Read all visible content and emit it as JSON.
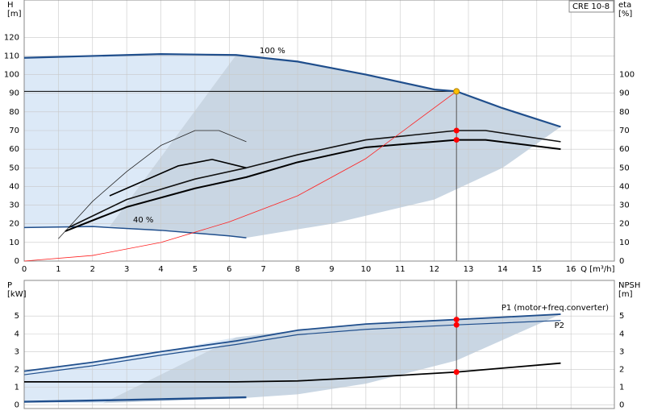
{
  "chart_data": [
    {
      "type": "line",
      "title": "CRE 10-8",
      "ylabel": "H",
      "yunit": "[m]",
      "y2label": "eta",
      "y2unit": "[%]",
      "xlabel": "Q [m³/h]",
      "xlim": [
        0,
        17.27
      ],
      "xticks": [
        0,
        1,
        2,
        3,
        4,
        5,
        6,
        7,
        8,
        9,
        10,
        11,
        12,
        13,
        14,
        15,
        16
      ],
      "ylim": [
        0,
        140
      ],
      "yticks": [
        0,
        10,
        20,
        30,
        40,
        50,
        60,
        70,
        80,
        90,
        100,
        110,
        120
      ],
      "y2lim": [
        0,
        140
      ],
      "y2ticks": [
        0,
        10,
        20,
        30,
        40,
        50,
        60,
        70,
        80,
        90,
        100
      ],
      "grid": true,
      "areas": [
        {
          "color": "#dce9f7",
          "x": [
            0,
            2,
            4,
            6.2,
            2.5,
            0
          ],
          "values": [
            109,
            110,
            111,
            110.5,
            18.5,
            18
          ]
        },
        {
          "color": "#c9d6e3",
          "x": [
            6.2,
            8,
            10,
            12,
            12.65,
            14,
            15.7,
            14,
            12,
            9,
            6.5,
            4,
            2.5
          ],
          "values": [
            110.5,
            107,
            100,
            92,
            91,
            82,
            72,
            50,
            33,
            20,
            12.5,
            16.5,
            18.5
          ]
        }
      ],
      "series": [
        {
          "name": "100 %",
          "color": "#1f4e8c",
          "width": 2.2,
          "x": [
            0,
            2,
            4,
            6.2,
            8,
            10,
            12,
            12.65,
            14,
            15.7
          ],
          "values": [
            109,
            110,
            111,
            110.5,
            107,
            100,
            92,
            91,
            82,
            72
          ]
        },
        {
          "name": "40 %",
          "color": "#1f4e8c",
          "width": 1.5,
          "x": [
            0,
            2,
            4,
            6,
            6.5
          ],
          "values": [
            18,
            18.5,
            16.5,
            13.5,
            12.5
          ]
        },
        {
          "color": "#111111",
          "width": 1.6,
          "axis": "y2",
          "x": [
            1.3,
            3,
            5,
            6.5,
            8,
            10,
            12.65,
            13.5,
            15.7
          ],
          "values": [
            18,
            33,
            44,
            50,
            57,
            65,
            70,
            70,
            64
          ]
        },
        {
          "color": "#000000",
          "width": 2,
          "axis": "y2",
          "x": [
            1.2,
            3,
            5,
            6.5,
            8,
            10,
            12.65,
            13.5,
            15.7
          ],
          "values": [
            16,
            29,
            39,
            45,
            53,
            61,
            65,
            65,
            60
          ]
        },
        {
          "color": "#222222",
          "width": 0.8,
          "axis": "y2",
          "x": [
            1,
            2,
            3,
            4,
            5,
            5.7,
            6.5
          ],
          "values": [
            12,
            32,
            48,
            62,
            70,
            70,
            64
          ]
        },
        {
          "color": "#000000",
          "width": 1.6,
          "axis": "y2",
          "x": [
            2.5,
            3.5,
            4.5,
            5.5,
            6.5
          ],
          "values": [
            35,
            43,
            51,
            54.5,
            50
          ]
        },
        {
          "color": "#ff2020",
          "width": 0.8,
          "x": [
            0,
            2,
            4,
            6,
            8,
            10,
            12.65
          ],
          "values": [
            0,
            3,
            10,
            21,
            35,
            55,
            91
          ]
        }
      ],
      "points": {
        "x": [
          12.65,
          12.65,
          12.65
        ],
        "values": [
          91,
          70,
          65
        ],
        "colors": [
          "#ffc000",
          "#ff0000",
          "#ff0000"
        ],
        "axes": [
          "y",
          "y2",
          "y2"
        ]
      }
    },
    {
      "type": "line",
      "ylabel": "P",
      "yunit": "[kW]",
      "y2label": "NPSH",
      "y2unit": "[m]",
      "xlim": [
        0,
        17.27
      ],
      "xticks": [
        0,
        1,
        2,
        3,
        4,
        5,
        6,
        7,
        8,
        9,
        10,
        11,
        12,
        13,
        14,
        15,
        16
      ],
      "ylim": [
        -0.2,
        7
      ],
      "yticks": [
        0,
        1,
        2,
        3,
        4,
        5
      ],
      "y2lim": [
        -0.2,
        7
      ],
      "y2ticks": [
        0,
        1,
        2,
        3,
        4,
        5
      ],
      "grid": true,
      "areas": [
        {
          "color": "#dce9f7",
          "x": [
            0,
            2,
            4,
            6.2,
            2.3,
            0
          ],
          "values": [
            1.9,
            2.4,
            3,
            3.8,
            0.1,
            0.15
          ]
        },
        {
          "color": "#c9d6e3",
          "x": [
            6.2,
            8,
            10,
            12.65,
            15.7,
            12.65,
            10,
            8,
            6.5,
            2.3
          ],
          "values": [
            3.8,
            4.2,
            4.55,
            4.8,
            5.1,
            2.5,
            1.2,
            0.6,
            0.4,
            0.1
          ]
        }
      ],
      "series": [
        {
          "name": "P1 (motor+freq.converter)",
          "color": "#1f4e8c",
          "width": 1.8,
          "x": [
            0,
            2,
            4,
            6.2,
            8,
            10,
            12.65,
            15.7
          ],
          "values": [
            1.9,
            2.4,
            3,
            3.6,
            4.2,
            4.55,
            4.8,
            5.1
          ]
        },
        {
          "name": "P2",
          "color": "#1f4e8c",
          "width": 1.2,
          "x": [
            0,
            2,
            4,
            6.2,
            8,
            10,
            12.65,
            15.7
          ],
          "values": [
            1.7,
            2.2,
            2.8,
            3.4,
            3.95,
            4.25,
            4.5,
            4.75
          ]
        },
        {
          "color": "#000000",
          "width": 1.8,
          "axis": "y2",
          "x": [
            0,
            6.2,
            8,
            10,
            12.65,
            15.7
          ],
          "values": [
            1.3,
            1.3,
            1.35,
            1.55,
            1.85,
            2.35
          ]
        },
        {
          "color": "#1f4e8c",
          "width": 1.6,
          "x": [
            0,
            3,
            6.5
          ],
          "values": [
            0.2,
            0.3,
            0.45
          ]
        },
        {
          "color": "#1f4e8c",
          "width": 1,
          "x": [
            0,
            3,
            6.5
          ],
          "values": [
            0.15,
            0.25,
            0.4
          ]
        }
      ],
      "points": {
        "x": [
          12.65,
          12.65,
          12.65
        ],
        "values": [
          4.8,
          4.5,
          1.85
        ],
        "colors": [
          "#ff0000",
          "#ff0000",
          "#ff0000"
        ],
        "axes": [
          "y",
          "y",
          "y2"
        ]
      }
    }
  ]
}
